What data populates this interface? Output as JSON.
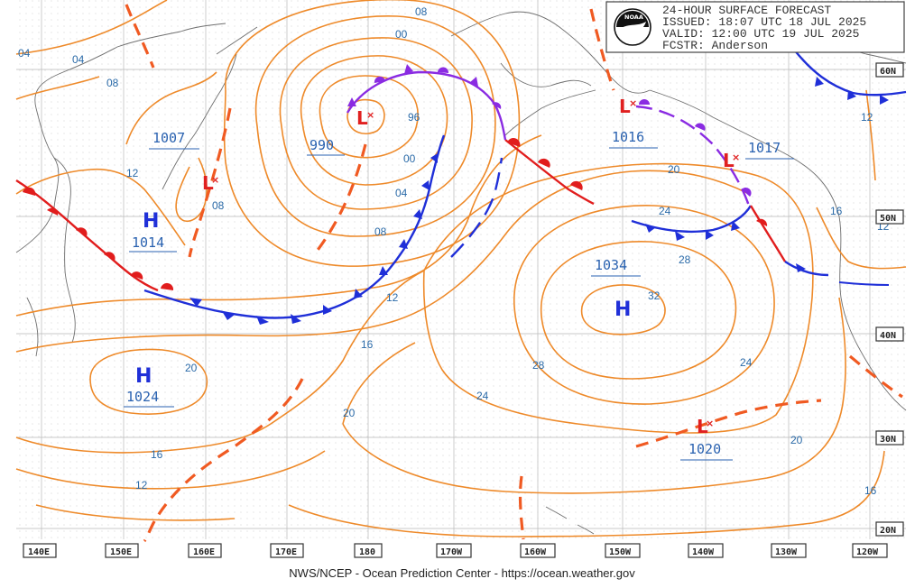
{
  "header": {
    "title": "24-HOUR SURFACE FORECAST",
    "issued": "ISSUED: 18:07 UTC 18 JUL 2025",
    "valid": "VALID:  12:00 UTC 19 JUL 2025",
    "forecaster": "FCSTR:  Anderson",
    "logo_text": "NOAA"
  },
  "footer": "NWS/NCEP - Ocean Prediction Center - https://ocean.weather.gov",
  "longitude_labels": [
    "140E",
    "150E",
    "160E",
    "170E",
    "180",
    "170W",
    "160W",
    "150W",
    "140W",
    "130W",
    "120W"
  ],
  "latitude_labels": [
    "60N",
    "50N",
    "40N",
    "30N",
    "20N"
  ],
  "pressure_centers": [
    {
      "type": "H",
      "value": "1014"
    },
    {
      "type": "H",
      "value": "1024"
    },
    {
      "type": "H",
      "value": "1034"
    },
    {
      "type": "L",
      "value": "1007"
    },
    {
      "type": "L",
      "value": "990"
    },
    {
      "type": "L",
      "value": "1016"
    },
    {
      "type": "L",
      "value": "1017"
    },
    {
      "type": "L",
      "value": "1020"
    }
  ],
  "isobar_labels": [
    "00",
    "04",
    "08",
    "08",
    "04",
    "96",
    "00",
    "04",
    "08",
    "12",
    "12",
    "16",
    "20",
    "16",
    "12",
    "08",
    "20",
    "24",
    "28",
    "32",
    "28",
    "24",
    "20",
    "16",
    "24",
    "20",
    "12",
    "16",
    "12"
  ],
  "colors": {
    "isobar": "#ee8a2a",
    "label_blue": "#2a6aa8",
    "cold_front": "#1f2fd8",
    "warm_front": "#e11d1d",
    "occluded_front": "#8a2be2",
    "trough": "#f05a22"
  }
}
